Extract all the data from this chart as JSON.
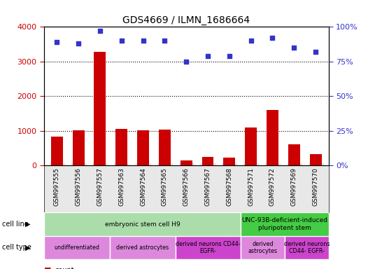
{
  "title": "GDS4669 / ILMN_1686664",
  "samples": [
    "GSM997555",
    "GSM997556",
    "GSM997557",
    "GSM997563",
    "GSM997564",
    "GSM997565",
    "GSM997566",
    "GSM997567",
    "GSM997568",
    "GSM997571",
    "GSM997572",
    "GSM997569",
    "GSM997570"
  ],
  "counts": [
    830,
    1010,
    3280,
    1060,
    1020,
    1030,
    140,
    250,
    230,
    1090,
    1600,
    620,
    320
  ],
  "percentiles": [
    89,
    88,
    97,
    90,
    90,
    90,
    75,
    79,
    79,
    90,
    92,
    85,
    82
  ],
  "bar_color": "#cc0000",
  "dot_color": "#3333cc",
  "ylim_left": [
    0,
    4000
  ],
  "ylim_right": [
    0,
    100
  ],
  "yticks_left": [
    0,
    1000,
    2000,
    3000,
    4000
  ],
  "yticks_right": [
    0,
    25,
    50,
    75,
    100
  ],
  "cell_line_groups": [
    {
      "label": "embryonic stem cell H9",
      "start": 0,
      "end": 9,
      "color": "#aaddaa"
    },
    {
      "label": "UNC-93B-deficient-induced\npluripotent stem",
      "start": 9,
      "end": 13,
      "color": "#44cc44"
    }
  ],
  "cell_type_groups": [
    {
      "label": "undifferentiated",
      "start": 0,
      "end": 3,
      "color": "#dd88dd"
    },
    {
      "label": "derived astrocytes",
      "start": 3,
      "end": 6,
      "color": "#dd88dd"
    },
    {
      "label": "derived neurons CD44-\nEGFR-",
      "start": 6,
      "end": 9,
      "color": "#cc44cc"
    },
    {
      "label": "derived\nastrocytes",
      "start": 9,
      "end": 11,
      "color": "#dd88dd"
    },
    {
      "label": "derived neurons\nCD44- EGFR-",
      "start": 11,
      "end": 13,
      "color": "#cc44cc"
    }
  ],
  "tick_color_left": "#cc0000",
  "tick_color_right": "#3333cc",
  "bg_color": "#e8e8e8",
  "chart_bg": "#ffffff",
  "grid_color": "#000000"
}
